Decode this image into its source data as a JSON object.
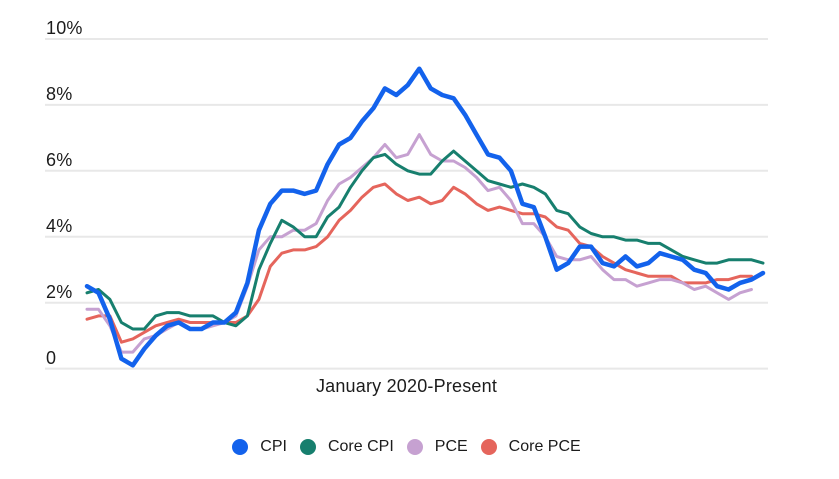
{
  "colors": {
    "background": "#FFFFFF",
    "grid": "#E8E8E8",
    "text": "#1C1C1C"
  },
  "chart_data": {
    "type": "line",
    "title": "",
    "xlabel": "January 2020-Present",
    "ylabel": "",
    "x_unit": "month",
    "x_start": "January 2020",
    "ylim": [
      0,
      10
    ],
    "grid": true,
    "legend_position": "bottom",
    "y_ticks": [
      {
        "value": 0,
        "label": "0"
      },
      {
        "value": 2,
        "label": "2%"
      },
      {
        "value": 4,
        "label": "4%"
      },
      {
        "value": 6,
        "label": "6%"
      },
      {
        "value": 8,
        "label": "8%"
      },
      {
        "value": 10,
        "label": "10%"
      }
    ],
    "series": [
      {
        "id": "cpi",
        "name": "CPI",
        "color": "#1362EC",
        "stroke_width": 4.5,
        "values": [
          2.5,
          2.3,
          1.5,
          0.3,
          0.1,
          0.6,
          1.0,
          1.3,
          1.4,
          1.2,
          1.2,
          1.4,
          1.4,
          1.7,
          2.6,
          4.2,
          5.0,
          5.4,
          5.4,
          5.3,
          5.4,
          6.2,
          6.8,
          7.0,
          7.5,
          7.9,
          8.5,
          8.3,
          8.6,
          9.1,
          8.5,
          8.3,
          8.2,
          7.7,
          7.1,
          6.5,
          6.4,
          6.0,
          5.0,
          4.9,
          4.0,
          3.0,
          3.2,
          3.7,
          3.7,
          3.2,
          3.1,
          3.4,
          3.1,
          3.2,
          3.5,
          3.4,
          3.3,
          3.0,
          2.9,
          2.5,
          2.4,
          2.6,
          2.7,
          2.9
        ]
      },
      {
        "id": "core-cpi",
        "name": "Core CPI",
        "color": "#177F6E",
        "stroke_width": 3,
        "values": [
          2.3,
          2.4,
          2.1,
          1.4,
          1.2,
          1.2,
          1.6,
          1.7,
          1.7,
          1.6,
          1.6,
          1.6,
          1.4,
          1.3,
          1.6,
          3.0,
          3.8,
          4.5,
          4.3,
          4.0,
          4.0,
          4.6,
          4.9,
          5.5,
          6.0,
          6.4,
          6.5,
          6.2,
          6.0,
          5.9,
          5.9,
          6.3,
          6.6,
          6.3,
          6.0,
          5.7,
          5.6,
          5.5,
          5.6,
          5.5,
          5.3,
          4.8,
          4.7,
          4.3,
          4.1,
          4.0,
          4.0,
          3.9,
          3.9,
          3.8,
          3.8,
          3.6,
          3.4,
          3.3,
          3.2,
          3.2,
          3.3,
          3.3,
          3.3,
          3.2
        ]
      },
      {
        "id": "pce",
        "name": "PCE",
        "color": "#C6A1D1",
        "stroke_width": 3,
        "values": [
          1.8,
          1.8,
          1.3,
          0.5,
          0.5,
          0.9,
          1.0,
          1.2,
          1.4,
          1.2,
          1.2,
          1.3,
          1.4,
          1.6,
          2.5,
          3.6,
          4.0,
          4.0,
          4.2,
          4.2,
          4.4,
          5.1,
          5.6,
          5.8,
          6.1,
          6.4,
          6.8,
          6.4,
          6.5,
          7.1,
          6.5,
          6.3,
          6.3,
          6.1,
          5.8,
          5.4,
          5.5,
          5.1,
          4.4,
          4.4,
          4.0,
          3.4,
          3.3,
          3.3,
          3.4,
          3.0,
          2.7,
          2.7,
          2.5,
          2.6,
          2.7,
          2.7,
          2.6,
          2.4,
          2.5,
          2.3,
          2.1,
          2.3,
          2.4
        ]
      },
      {
        "id": "core-pce",
        "name": "Core PCE",
        "color": "#E5655C",
        "stroke_width": 3,
        "values": [
          1.5,
          1.6,
          1.6,
          0.8,
          0.9,
          1.1,
          1.3,
          1.4,
          1.5,
          1.4,
          1.4,
          1.4,
          1.4,
          1.4,
          1.6,
          2.1,
          3.1,
          3.5,
          3.6,
          3.6,
          3.7,
          4.0,
          4.5,
          4.8,
          5.2,
          5.5,
          5.6,
          5.3,
          5.1,
          5.2,
          5.0,
          5.1,
          5.5,
          5.3,
          5.0,
          4.8,
          4.9,
          4.8,
          4.7,
          4.7,
          4.6,
          4.3,
          4.2,
          3.8,
          3.7,
          3.4,
          3.2,
          3.0,
          2.9,
          2.8,
          2.8,
          2.8,
          2.6,
          2.6,
          2.6,
          2.7,
          2.7,
          2.8,
          2.8
        ]
      }
    ]
  }
}
